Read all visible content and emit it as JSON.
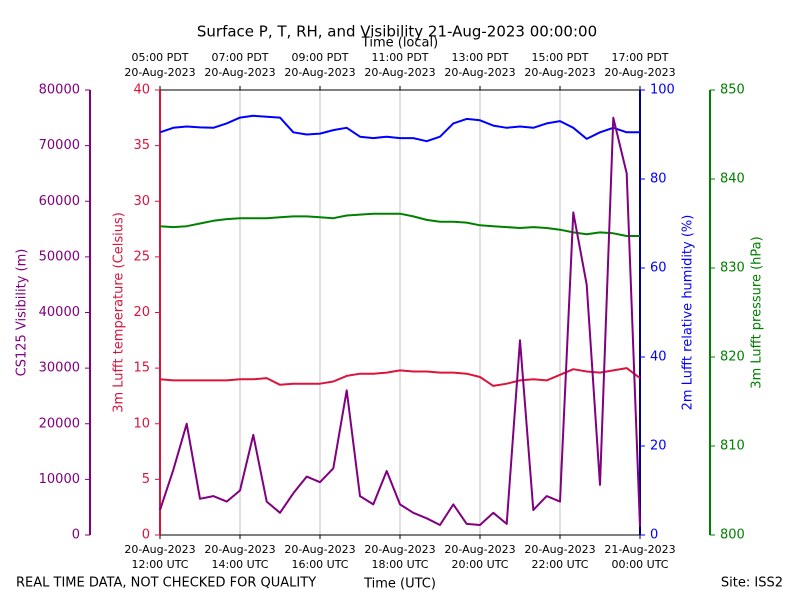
{
  "chart_data": {
    "type": "line",
    "title": "Surface P, T, RH, and Visibility 21-Aug-2023 00:00:00",
    "xlabel": "Time (UTC)",
    "x2label": "Time (local)",
    "annotations": [
      "REAL TIME DATA, NOT CHECKED FOR QUALITY",
      "Site: ISS2"
    ],
    "grid": true,
    "xlim": [
      "2023-08-20 12:00",
      "2023-08-21 00:00"
    ],
    "xticks": [
      {
        "value": "2023-08-20 12:00",
        "label": [
          "20-Aug-2023",
          "12:00 UTC"
        ]
      },
      {
        "value": "2023-08-20 14:00",
        "label": [
          "20-Aug-2023",
          "14:00 UTC"
        ]
      },
      {
        "value": "2023-08-20 16:00",
        "label": [
          "20-Aug-2023",
          "16:00 UTC"
        ]
      },
      {
        "value": "2023-08-20 18:00",
        "label": [
          "20-Aug-2023",
          "18:00 UTC"
        ]
      },
      {
        "value": "2023-08-20 20:00",
        "label": [
          "20-Aug-2023",
          "20:00 UTC"
        ]
      },
      {
        "value": "2023-08-20 22:00",
        "label": [
          "20-Aug-2023",
          "22:00 UTC"
        ]
      },
      {
        "value": "2023-08-21 00:00",
        "label": [
          "21-Aug-2023",
          "00:00 UTC"
        ]
      }
    ],
    "x2ticks": [
      {
        "value": "2023-08-20 12:00",
        "label": [
          "05:00 PDT",
          "20-Aug-2023"
        ]
      },
      {
        "value": "2023-08-20 14:00",
        "label": [
          "07:00 PDT",
          "20-Aug-2023"
        ]
      },
      {
        "value": "2023-08-20 16:00",
        "label": [
          "09:00 PDT",
          "20-Aug-2023"
        ]
      },
      {
        "value": "2023-08-20 18:00",
        "label": [
          "11:00 PDT",
          "20-Aug-2023"
        ]
      },
      {
        "value": "2023-08-20 20:00",
        "label": [
          "13:00 PDT",
          "20-Aug-2023"
        ]
      },
      {
        "value": "2023-08-20 22:00",
        "label": [
          "15:00 PDT",
          "20-Aug-2023"
        ]
      },
      {
        "value": "2023-08-21 00:00",
        "label": [
          "17:00 PDT",
          "20-Aug-2023"
        ]
      }
    ],
    "x": [
      "2023-08-20 12:00",
      "2023-08-20 12:20",
      "2023-08-20 12:40",
      "2023-08-20 13:00",
      "2023-08-20 13:20",
      "2023-08-20 13:40",
      "2023-08-20 14:00",
      "2023-08-20 14:20",
      "2023-08-20 14:40",
      "2023-08-20 15:00",
      "2023-08-20 15:20",
      "2023-08-20 15:40",
      "2023-08-20 16:00",
      "2023-08-20 16:20",
      "2023-08-20 16:40",
      "2023-08-20 17:00",
      "2023-08-20 17:20",
      "2023-08-20 17:40",
      "2023-08-20 18:00",
      "2023-08-20 18:20",
      "2023-08-20 18:40",
      "2023-08-20 19:00",
      "2023-08-20 19:20",
      "2023-08-20 19:40",
      "2023-08-20 20:00",
      "2023-08-20 20:20",
      "2023-08-20 20:40",
      "2023-08-20 21:00",
      "2023-08-20 21:20",
      "2023-08-20 21:40",
      "2023-08-20 22:00",
      "2023-08-20 22:20",
      "2023-08-20 22:40",
      "2023-08-20 23:00",
      "2023-08-20 23:20",
      "2023-08-20 23:40",
      "2023-08-21 00:00"
    ],
    "series": [
      {
        "ylabel": "CS125 Visibility (m)",
        "color": "#800080",
        "ylim": [
          0,
          80000
        ],
        "yticks": [
          0,
          10000,
          20000,
          30000,
          40000,
          50000,
          60000,
          70000,
          80000
        ],
        "values": [
          4500,
          11700,
          20000,
          6500,
          7000,
          6000,
          8000,
          18000,
          6000,
          4000,
          7500,
          10500,
          9500,
          12000,
          26000,
          7000,
          5500,
          11500,
          5500,
          4000,
          3000,
          1800,
          5500,
          2000,
          1800,
          4000,
          2000,
          35000,
          4500,
          7000,
          6000,
          58000,
          45000,
          9000,
          75000,
          65000,
          1500
        ]
      },
      {
        "ylabel": "3m Lufft temperature (Celsius)",
        "color": "#dc143c",
        "ylim": [
          0,
          40
        ],
        "yticks": [
          0,
          5,
          10,
          15,
          20,
          25,
          30,
          35,
          40
        ],
        "values": [
          14.0,
          13.9,
          13.9,
          13.9,
          13.9,
          13.9,
          14.0,
          14.0,
          14.1,
          13.5,
          13.6,
          13.6,
          13.6,
          13.8,
          14.3,
          14.5,
          14.5,
          14.6,
          14.8,
          14.7,
          14.7,
          14.6,
          14.6,
          14.5,
          14.2,
          13.4,
          13.6,
          13.9,
          14.0,
          13.9,
          14.4,
          14.9,
          14.7,
          14.6,
          14.8,
          15.0,
          14.1
        ]
      },
      {
        "ylabel": "2m Lufft relative humidity (%)",
        "color": "#0000ff",
        "ylim": [
          0,
          100
        ],
        "yticks": [
          0,
          20,
          40,
          60,
          80,
          100
        ],
        "values": [
          90.5,
          91.5,
          91.8,
          91.6,
          91.5,
          92.5,
          93.8,
          94.2,
          94.0,
          93.8,
          90.5,
          90.0,
          90.2,
          91.0,
          91.5,
          89.5,
          89.2,
          89.5,
          89.2,
          89.2,
          88.5,
          89.5,
          92.5,
          93.5,
          93.2,
          92.0,
          91.5,
          91.8,
          91.5,
          92.5,
          93.0,
          91.5,
          89.0,
          90.5,
          91.5,
          90.5,
          90.5
        ]
      },
      {
        "ylabel": "3m Lufft pressure (hPa)",
        "color": "#008000",
        "ylim": [
          800,
          850
        ],
        "yticks": [
          800,
          810,
          820,
          830,
          840,
          850
        ],
        "values": [
          834.7,
          834.6,
          834.7,
          835.0,
          835.3,
          835.5,
          835.6,
          835.6,
          835.6,
          835.7,
          835.8,
          835.8,
          835.7,
          835.6,
          835.9,
          836.0,
          836.1,
          836.1,
          836.1,
          835.8,
          835.4,
          835.2,
          835.2,
          835.1,
          834.8,
          834.7,
          834.6,
          834.5,
          834.6,
          834.5,
          834.3,
          834.0,
          833.8,
          834.0,
          833.9,
          833.6,
          833.6
        ]
      }
    ]
  }
}
